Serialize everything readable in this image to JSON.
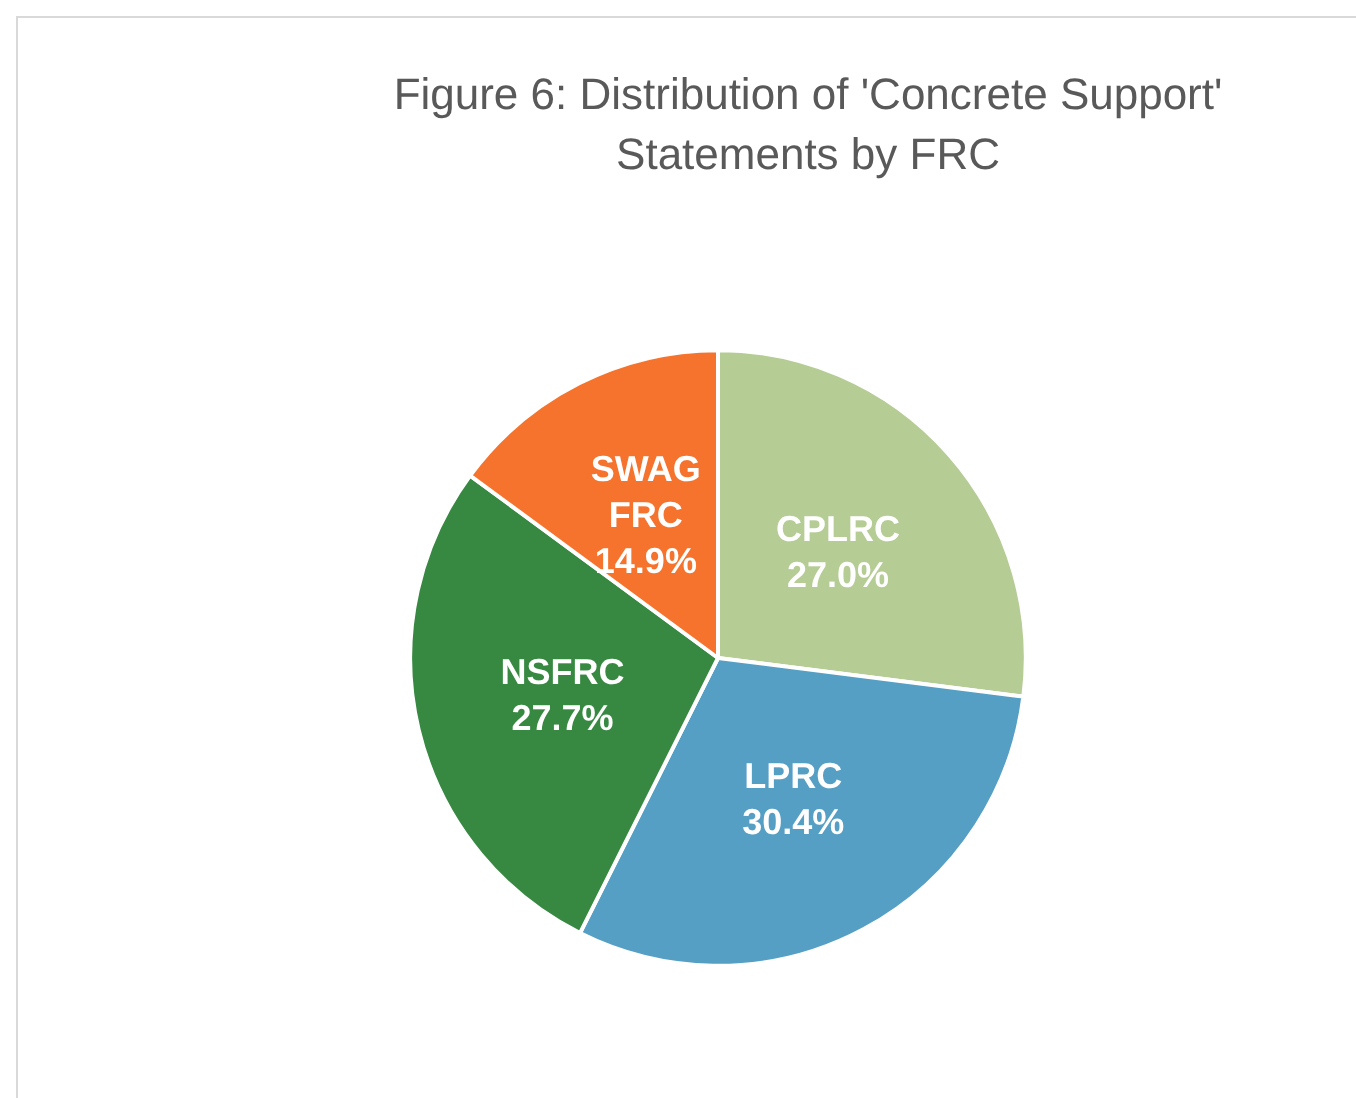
{
  "chart_data": {
    "type": "pie",
    "title": "Figure 6: Distribution of 'Concrete Support'\nStatements by FRC",
    "categories": [
      "CPLRC",
      "LPRC",
      "NSFRC",
      "SWAG FRC"
    ],
    "values": [
      27.0,
      30.4,
      27.7,
      14.9
    ],
    "colors": [
      "#b5cc95",
      "#559ec4",
      "#378841",
      "#f5732c"
    ],
    "value_labels": [
      "27.0%",
      "30.4%",
      "27.7%",
      "14.9%"
    ],
    "legend": false
  }
}
